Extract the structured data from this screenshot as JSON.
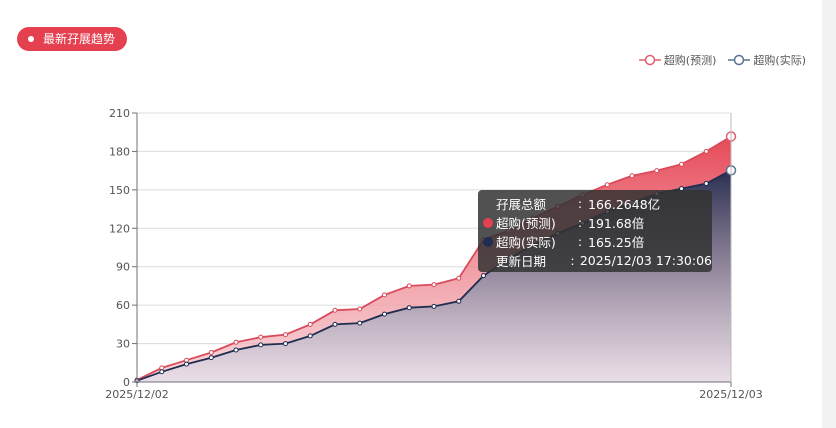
{
  "title": "最新孖展趋势",
  "legend": [
    {
      "label": "超购(预测)",
      "color": "#e06070"
    },
    {
      "label": "超购(实际)",
      "color": "#5c7393"
    }
  ],
  "tooltip": {
    "rows": [
      {
        "name": "孖展总额",
        "value": "166.2648亿",
        "marker": ""
      },
      {
        "name": "超购(预测)",
        "value": "191.68倍",
        "marker": "#e5404f"
      },
      {
        "name": "超购(实际)",
        "value": "165.25倍",
        "marker": "#1f2d50"
      },
      {
        "name": "更新日期",
        "value": "2025/12/03 17:30:06",
        "marker": ""
      }
    ],
    "separator": ":"
  },
  "chart_data": {
    "type": "area",
    "x_labels": [
      "2025/12/02",
      "2025/12/03"
    ],
    "ylim": [
      0,
      210
    ],
    "yticks": [
      0,
      30,
      60,
      90,
      120,
      150,
      180,
      210
    ],
    "grid": true,
    "legend_position": "top-right",
    "series": [
      {
        "name": "超购(预测)",
        "color": "#e5404f",
        "values": [
          1.5,
          11,
          17,
          23,
          31,
          35,
          37,
          45,
          56,
          57,
          68,
          75,
          76,
          81,
          111,
          118,
          128,
          137,
          146,
          154,
          161,
          165,
          170,
          180,
          191.68
        ]
      },
      {
        "name": "超购(实际)",
        "color": "#1f2d50",
        "values": [
          1,
          8,
          14,
          19,
          25,
          29,
          30,
          36,
          45,
          46,
          53,
          58,
          59,
          63,
          83,
          96,
          107,
          116,
          124,
          133,
          140,
          147,
          151,
          155,
          165.25
        ]
      }
    ]
  }
}
